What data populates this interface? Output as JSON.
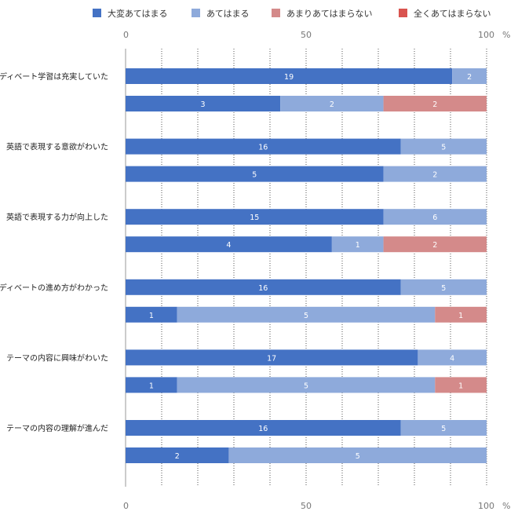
{
  "chart_data": {
    "type": "bar",
    "orientation": "horizontal",
    "stacked": "percent",
    "legend_position": "top",
    "grid": true,
    "xlim": [
      0,
      100
    ],
    "x_ticks": [
      "0",
      "50",
      "100"
    ],
    "x_unit": "%",
    "series": [
      {
        "name": "大変あてはまる",
        "color": "#4472c4"
      },
      {
        "name": "あてはまる",
        "color": "#8eaadb"
      },
      {
        "name": "あまりあてはまらない",
        "color": "#d48a8a"
      },
      {
        "name": "全くあてはまらない",
        "color": "#d9534f"
      }
    ],
    "categories": [
      {
        "label": "ディベート学習は充実していた",
        "bars": [
          [
            19,
            2,
            0,
            0
          ],
          [
            3,
            2,
            2,
            0
          ]
        ]
      },
      {
        "label": "英語で表現する意欲がわいた",
        "bars": [
          [
            16,
            5,
            0,
            0
          ],
          [
            5,
            2,
            0,
            0
          ]
        ]
      },
      {
        "label": "英語で表現する力が向上した",
        "bars": [
          [
            15,
            6,
            0,
            0
          ],
          [
            4,
            1,
            2,
            0
          ]
        ]
      },
      {
        "label": "ディベートの進め方がわかった",
        "bars": [
          [
            16,
            5,
            0,
            0
          ],
          [
            1,
            5,
            1,
            0
          ]
        ]
      },
      {
        "label": "テーマの内容に興味がわいた",
        "bars": [
          [
            17,
            4,
            0,
            0
          ],
          [
            1,
            5,
            1,
            0
          ]
        ]
      },
      {
        "label": "テーマの内容の理解が進んだ",
        "bars": [
          [
            16,
            5,
            0,
            0
          ],
          [
            2,
            5,
            0,
            0
          ]
        ]
      }
    ]
  }
}
